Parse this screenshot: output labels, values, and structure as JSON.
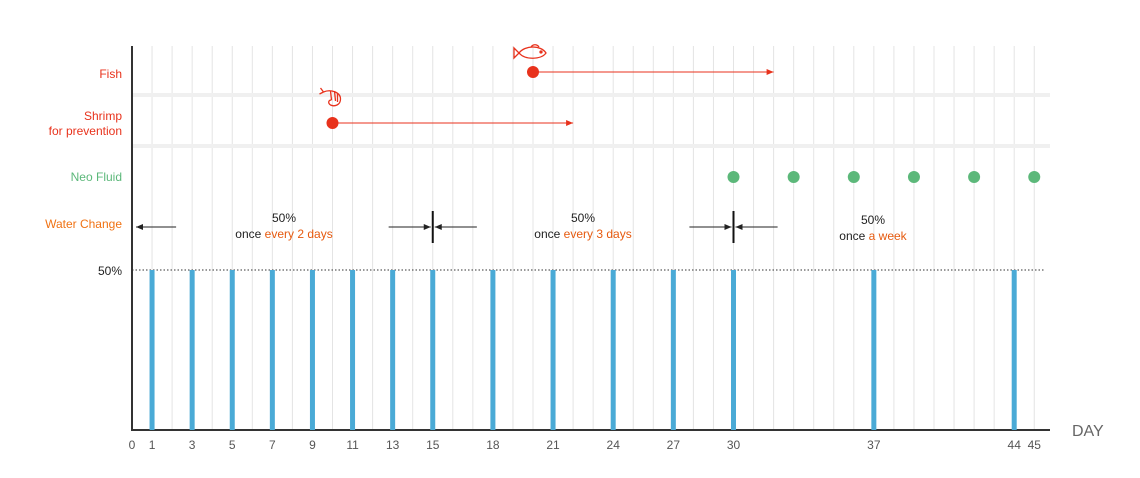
{
  "chart_data": {
    "type": "timeline",
    "xlabel": "DAY",
    "x_ticks": [
      0,
      1,
      3,
      5,
      7,
      9,
      11,
      13,
      15,
      18,
      21,
      24,
      27,
      30,
      37,
      44,
      45
    ],
    "xlim": [
      0,
      46
    ],
    "colors": {
      "fish": "#e8321c",
      "shrimp": "#e8321c",
      "neo": "#5cb87a",
      "water_label": "#f07213",
      "bar": "#4aaad6",
      "highlight": "#e65a0f"
    },
    "rows": {
      "fish": {
        "label": "Fish",
        "start_day": 20,
        "end_day": 32,
        "icon": "fish-icon"
      },
      "shrimp": {
        "label_line1": "Shrimp",
        "label_line2": "for prevention",
        "start_day": 10,
        "end_day": 22,
        "icon": "shrimp-icon"
      },
      "neo_fluid": {
        "label": "Neo Fluid",
        "days": [
          30,
          33,
          36,
          39,
          42,
          45
        ]
      },
      "water_change": {
        "label": "Water Change",
        "level_label": "50%",
        "bar_days": [
          1,
          3,
          5,
          7,
          9,
          11,
          13,
          15,
          18,
          21,
          24,
          27,
          30,
          37,
          44
        ],
        "bar_value_percent": 50,
        "phases": [
          {
            "start_day": 0,
            "end_day": 15,
            "pct": "50%",
            "prefix": "once ",
            "freq": "every 2 days"
          },
          {
            "start_day": 15,
            "end_day": 30,
            "pct": "50%",
            "prefix": "once ",
            "freq": "every 3 days"
          },
          {
            "start_day": 30,
            "end_day": 45,
            "pct": "50%",
            "prefix": "once ",
            "freq": "a week"
          }
        ]
      }
    }
  }
}
